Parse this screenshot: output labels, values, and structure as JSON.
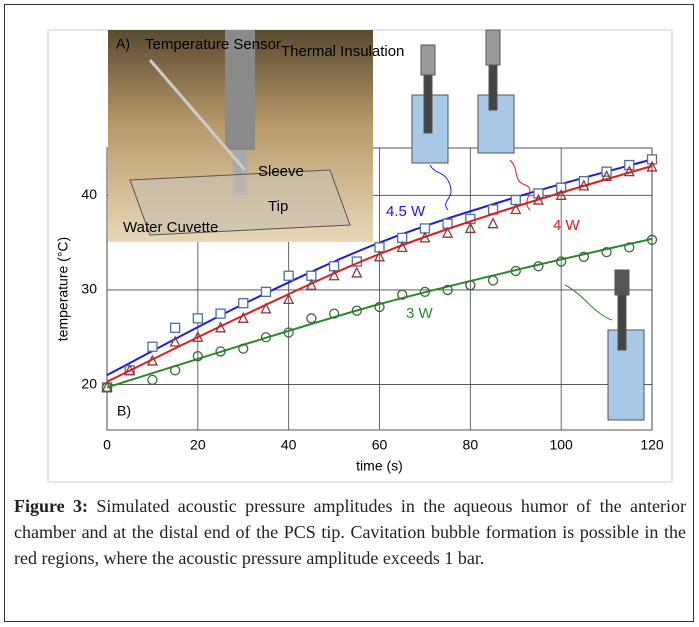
{
  "chart_data": {
    "type": "scatter",
    "panel_label": "B)",
    "x_label": "time (s)",
    "y_label": "temperature (°C)",
    "xlim": [
      0,
      120
    ],
    "ylim": [
      15.2,
      45
    ],
    "xticks": [
      0,
      20,
      40,
      60,
      80,
      100,
      120
    ],
    "yticks": [
      20,
      30,
      40
    ],
    "grid": true,
    "series": [
      {
        "name": "4.5 W",
        "color": "#1a1ae6",
        "marker": "square",
        "marker_color": "#4f6f9f",
        "x": [
          0,
          5,
          10,
          15,
          20,
          25,
          30,
          35,
          40,
          45,
          50,
          55,
          60,
          65,
          70,
          75,
          80,
          85,
          90,
          95,
          100,
          105,
          110,
          115,
          120
        ],
        "values": [
          19.7,
          21.5,
          24,
          26,
          27,
          27.5,
          28.6,
          29.8,
          31.5,
          31.5,
          32.5,
          33,
          34.5,
          35.5,
          36.5,
          37,
          37.5,
          38.5,
          39.5,
          40.2,
          40.8,
          41.5,
          42.5,
          43.2,
          43.8
        ],
        "fit_x": [
          0,
          30,
          60,
          90,
          120
        ],
        "fit_values": [
          21,
          28.5,
          35,
          39.8,
          43.8
        ]
      },
      {
        "name": "4 W",
        "color": "#e61a1a",
        "marker": "triangle",
        "marker_color": "#8a3a3a",
        "x": [
          0,
          5,
          10,
          15,
          20,
          25,
          30,
          35,
          40,
          45,
          50,
          55,
          60,
          65,
          70,
          75,
          80,
          85,
          90,
          95,
          100,
          105,
          110,
          115,
          120
        ],
        "values": [
          19.7,
          21.5,
          22.5,
          24.5,
          25,
          26,
          27,
          28,
          29,
          30.5,
          31.5,
          31.8,
          33.5,
          34.5,
          35.5,
          36,
          36.5,
          37,
          38.5,
          39.5,
          40,
          41,
          42,
          42.5,
          43
        ],
        "fit_x": [
          0,
          30,
          60,
          90,
          120
        ],
        "fit_values": [
          20.3,
          27.3,
          33.8,
          38.8,
          43.1
        ]
      },
      {
        "name": "3 W",
        "color": "#2a8a2a",
        "marker": "circle",
        "marker_color": "#3a6a3a",
        "x": [
          0,
          10,
          15,
          20,
          25,
          30,
          35,
          40,
          45,
          50,
          55,
          60,
          65,
          70,
          75,
          80,
          85,
          90,
          95,
          100,
          105,
          110,
          115,
          120
        ],
        "values": [
          19.7,
          20.5,
          21.5,
          23,
          23.5,
          23.8,
          25,
          25.5,
          27,
          27.5,
          27.8,
          28.2,
          29.5,
          29.8,
          30,
          30.5,
          31,
          32,
          32.5,
          33,
          33.5,
          34,
          34.5,
          35.3
        ],
        "fit_x": [
          0,
          30,
          60,
          90,
          120
        ],
        "fit_values": [
          19.7,
          24.2,
          28.5,
          32.1,
          35.4
        ]
      }
    ]
  },
  "photo": {
    "panel_label": "A)",
    "labels": [
      "Temperature Sensor",
      "Thermal Insulation",
      "Sleeve",
      "Tip",
      "Water Cuvette"
    ]
  },
  "caption": {
    "label": "Figure 3:",
    "text": "Simulated acoustic pressure amplitudes in the aqueous humor of the anterior chamber and at the distal end of the PCS tip. Cavitation bubble formation is possible in the red regions, where the acoustic pressure amplitude exceeds 1 bar."
  }
}
